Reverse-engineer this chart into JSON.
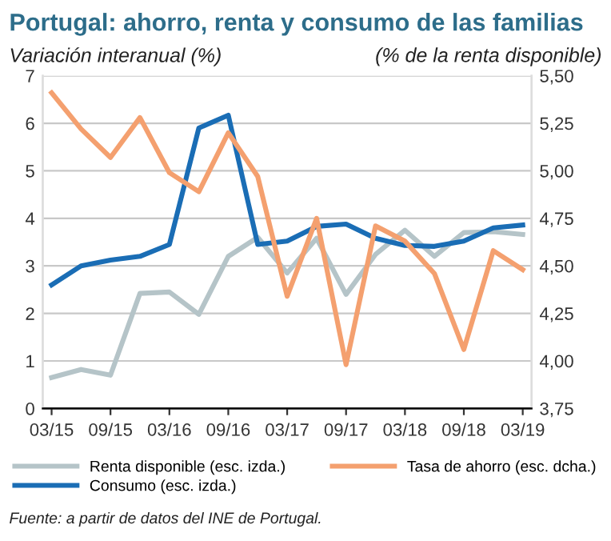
{
  "chart_data": {
    "type": "line",
    "title": "Portugal: ahorro, renta y consumo de las familias",
    "ylabel": "Variación interanual (%)",
    "y2label": "(% de la renta disponible)",
    "categories": [
      "03/15",
      null,
      "09/15",
      null,
      "03/16",
      null,
      "09/16",
      null,
      "03/17",
      null,
      "09/17",
      null,
      "03/18",
      null,
      "09/18",
      null,
      "03/19"
    ],
    "series": [
      {
        "name": "Renta disponible (esc. izda.)",
        "color": "#b5c4c8",
        "values": [
          0.65,
          0.82,
          0.7,
          2.42,
          2.45,
          1.98,
          3.2,
          3.6,
          2.85,
          3.58,
          2.4,
          3.24,
          3.75,
          3.2,
          3.7,
          3.72,
          3.66
        ]
      },
      {
        "name": "Consumo (esc. izda.)",
        "color": "#1a6db5",
        "values": [
          2.6,
          3.0,
          3.12,
          3.2,
          3.45,
          5.9,
          6.17,
          3.45,
          3.52,
          3.83,
          3.88,
          3.58,
          3.43,
          3.41,
          3.52,
          3.8,
          3.86
        ]
      },
      {
        "name": "Tasa de ahorro (esc. dcha.)",
        "color": "#f4a06f",
        "axis": "y2",
        "values": [
          5.41,
          5.22,
          5.07,
          5.28,
          4.99,
          4.89,
          5.2,
          4.97,
          4.34,
          4.75,
          3.98,
          4.71,
          4.63,
          4.46,
          4.06,
          4.58,
          4.48
        ]
      }
    ],
    "ylim": [
      0,
      7
    ],
    "yticks": [
      0,
      1,
      2,
      3,
      4,
      5,
      6,
      7
    ],
    "y2lim": [
      3.75,
      5.5
    ],
    "y2ticks": [
      {
        "value": 3.75,
        "label": "3,75"
      },
      {
        "value": 4.0,
        "label": "4,00"
      },
      {
        "value": 4.25,
        "label": "4,25"
      },
      {
        "value": 4.5,
        "label": "4,50"
      },
      {
        "value": 4.75,
        "label": "4,75"
      },
      {
        "value": 5.0,
        "label": "5,00"
      },
      {
        "value": 5.25,
        "label": "5,25"
      },
      {
        "value": 5.5,
        "label": "5,50"
      }
    ],
    "grid": "y",
    "legend": "bottom",
    "marker": "none",
    "line_style": "solid",
    "annotations": [
      "Fuente: a partir de datos del INE de Portugal."
    ]
  }
}
